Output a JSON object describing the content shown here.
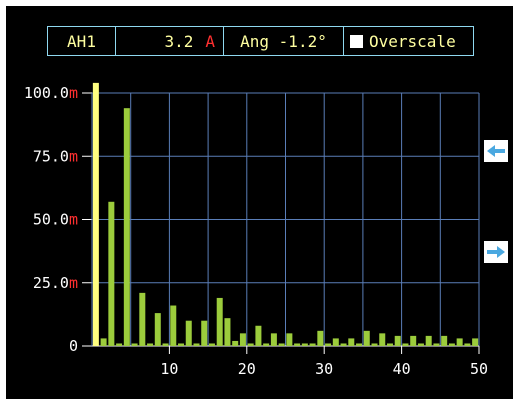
{
  "header": {
    "channel": "AH1",
    "value": "3.2",
    "unit": "A",
    "angle": "Ang -1.2°",
    "overscale": "Overscale"
  },
  "buttons": {
    "scroll_left_icon": "left-arrow-icon",
    "scroll_right_icon": "right-arrow-icon"
  },
  "colors": {
    "bar": "#9ccc3c",
    "highlight_bar": "#ffff80",
    "grid": "#5a7eb8",
    "unit_red": "#ff3030"
  },
  "chart_data": {
    "type": "bar",
    "y_ticks": [
      {
        "num": "100.0",
        "unit": "m"
      },
      {
        "num": "75.0",
        "unit": "m"
      },
      {
        "num": "50.0",
        "unit": "m"
      },
      {
        "num": "25.0",
        "unit": "m"
      },
      {
        "num": "0",
        "unit": ""
      }
    ],
    "x_ticks": [
      "10",
      "20",
      "30",
      "40",
      "50"
    ],
    "xlim": [
      0,
      50
    ],
    "ylim": [
      0,
      100
    ],
    "highlight_harmonic": 1,
    "harmonics": [
      1,
      2,
      3,
      4,
      5,
      6,
      7,
      8,
      9,
      10,
      11,
      12,
      13,
      14,
      15,
      16,
      17,
      18,
      19,
      20,
      21,
      22,
      23,
      24,
      25,
      26,
      27,
      28,
      29,
      30,
      31,
      32,
      33,
      34,
      35,
      36,
      37,
      38,
      39,
      40,
      41,
      42,
      43,
      44,
      45,
      46,
      47,
      48,
      49,
      50
    ],
    "values": [
      104,
      3,
      57,
      1,
      94,
      1,
      21,
      1,
      13,
      1,
      16,
      1,
      10,
      1,
      10,
      1,
      19,
      11,
      2,
      5,
      1,
      8,
      1,
      5,
      1,
      5,
      1,
      1,
      1,
      6,
      1,
      3,
      1,
      3,
      1,
      6,
      1,
      5,
      1,
      4,
      1,
      4,
      1,
      4,
      1,
      4,
      1,
      3,
      1,
      3
    ]
  }
}
